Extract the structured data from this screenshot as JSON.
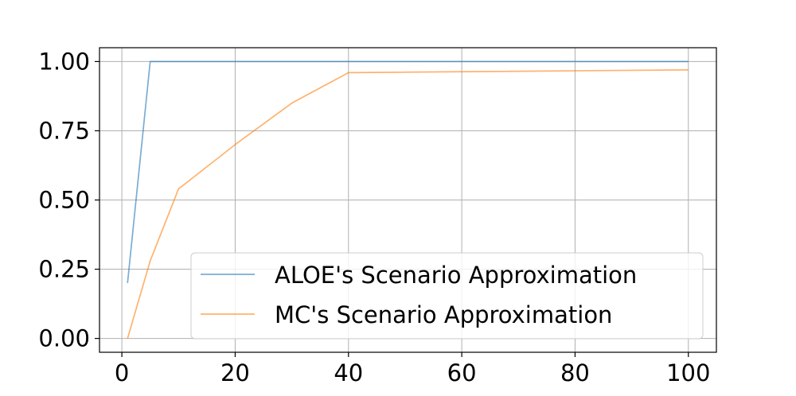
{
  "chart_data": {
    "type": "line",
    "title": "",
    "xlabel": "",
    "ylabel": "",
    "xlim": [
      -3.95,
      104.95
    ],
    "ylim": [
      -0.05,
      1.05
    ],
    "xticks": [
      0,
      20,
      40,
      60,
      80,
      100
    ],
    "xtick_labels": [
      "0",
      "20",
      "40",
      "60",
      "80",
      "100"
    ],
    "yticks": [
      0.0,
      0.25,
      0.5,
      0.75,
      1.0
    ],
    "ytick_labels": [
      "0.00",
      "0.25",
      "0.50",
      "0.75",
      "1.00"
    ],
    "grid": true,
    "legend_position": "lower-right",
    "series": [
      {
        "name": "ALOE's Scenario Approximation",
        "color": "#1f77b4",
        "x": [
          1,
          5,
          10,
          20,
          30,
          40,
          100
        ],
        "y": [
          0.2,
          1.0,
          1.0,
          1.0,
          1.0,
          1.0,
          1.0
        ]
      },
      {
        "name": "MC's Scenario Approximation",
        "color": "#ff7f0e",
        "x": [
          1,
          5,
          10,
          20,
          30,
          40,
          100
        ],
        "y": [
          0.0,
          0.28,
          0.54,
          0.7,
          0.85,
          0.96,
          0.97
        ]
      }
    ]
  }
}
